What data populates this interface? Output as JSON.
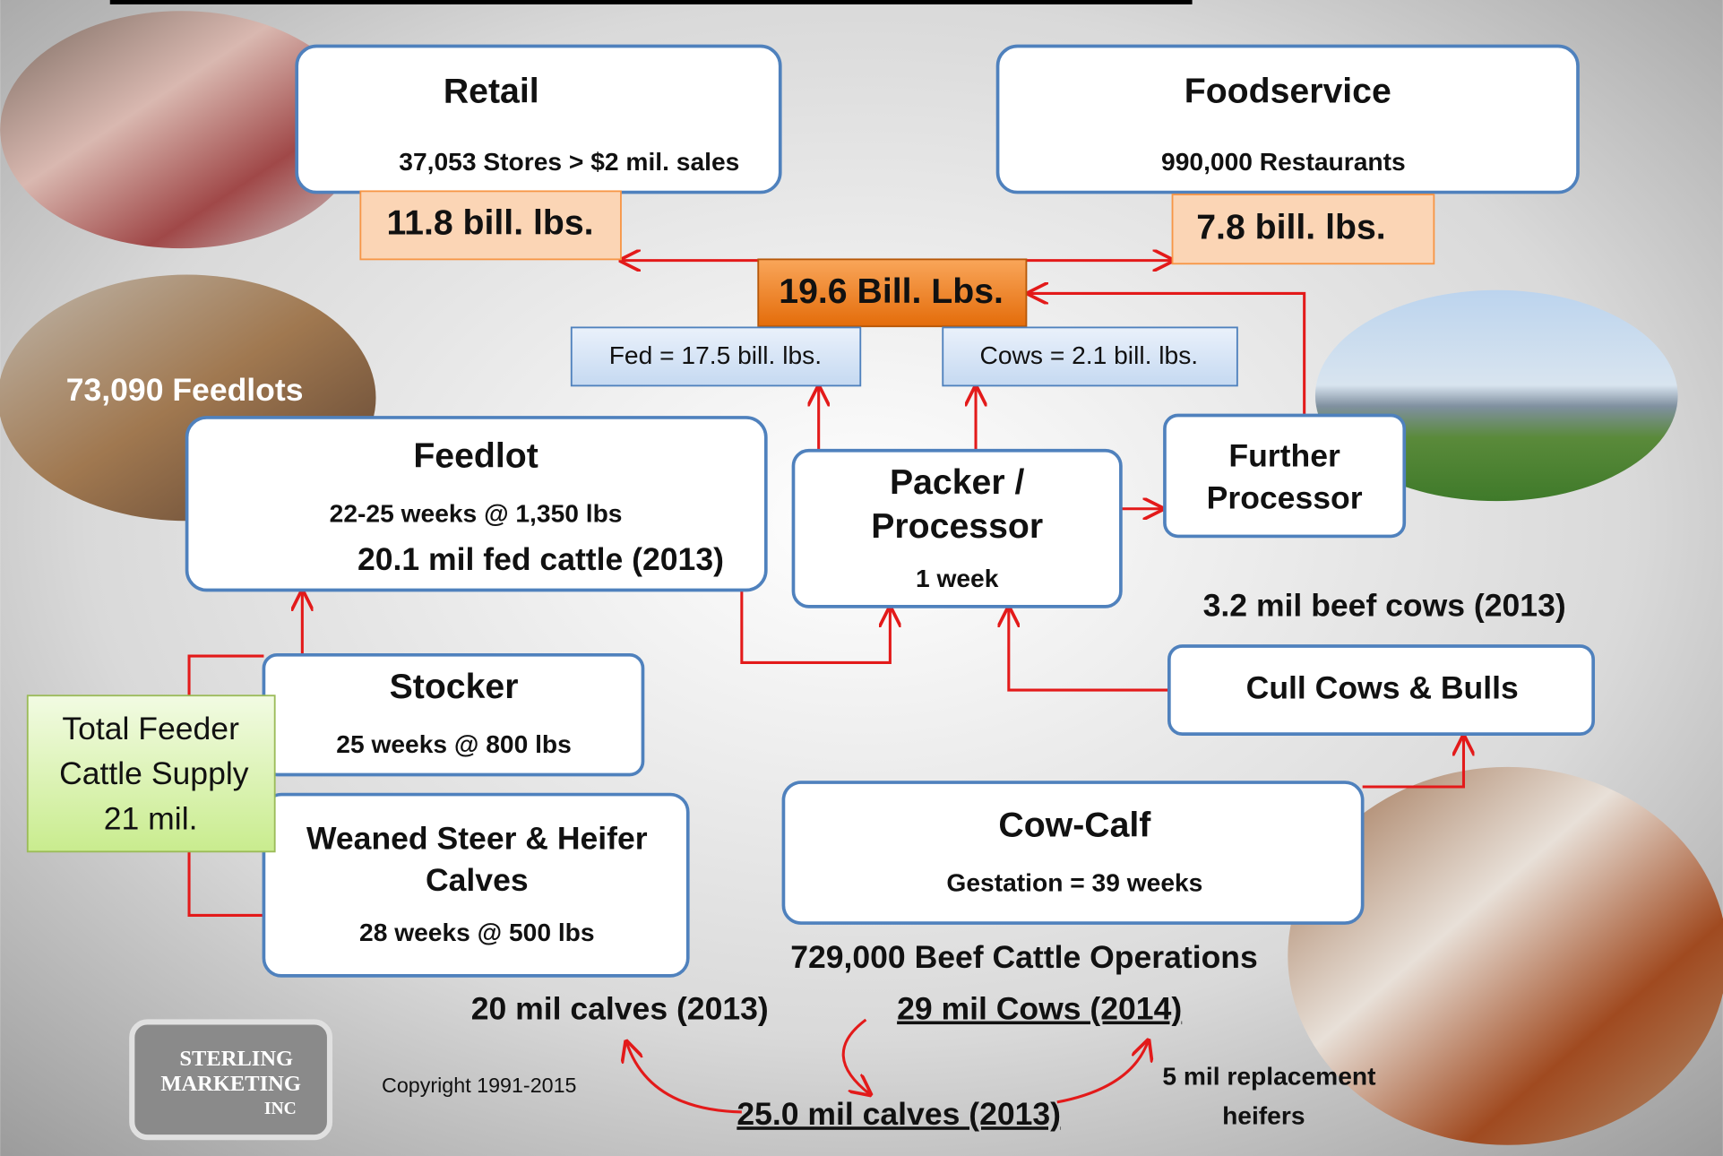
{
  "retail": {
    "title": "Retail",
    "detail": "37,053 Stores > $2 mil. sales",
    "volume": "11.8 bill. lbs."
  },
  "foodservice": {
    "title": "Foodservice",
    "detail": "990,000 Restaurants",
    "volume": "7.8 bill. lbs."
  },
  "total": "19.6 Bill. Lbs.",
  "fed": "Fed = 17.5 bill. lbs.",
  "cows": "Cows = 2.1 bill. lbs.",
  "feedlot": {
    "photo_label": "73,090 Feedlots",
    "title": "Feedlot",
    "detail": "22-25 weeks @ 1,350 lbs",
    "count": "20.1 mil fed cattle (2013)"
  },
  "packer": {
    "title_lines": [
      "Packer /",
      "Processor"
    ],
    "detail": "1 week"
  },
  "further_processor": {
    "title_lines": [
      "Further",
      "Processor"
    ]
  },
  "beef_cows": "3.2 mil beef cows (2013)",
  "cull": "Cull Cows & Bulls",
  "stocker": {
    "title": "Stocker",
    "detail": "25 weeks @ 800 lbs"
  },
  "total_feeder": [
    "Total Feeder",
    "Cattle Supply",
    "21 mil."
  ],
  "weaned": {
    "title_lines": [
      "Weaned Steer & Heifer",
      "Calves"
    ],
    "detail": "28 weeks @ 500 lbs"
  },
  "cow_calf": {
    "title": "Cow-Calf",
    "detail": "Gestation = 39 weeks",
    "operations": "729,000 Beef Cattle Operations"
  },
  "calves_2013": "20 mil calves (2013)",
  "cows_2014": "29 mil Cows (2014)",
  "calves_25": "25.0 mil calves (2013)",
  "replacement": [
    "5 mil replacement",
    "heifers"
  ],
  "logo": [
    "STERLING",
    "MARKETING",
    "INC"
  ],
  "copyright": "Copyright 1991-2015"
}
